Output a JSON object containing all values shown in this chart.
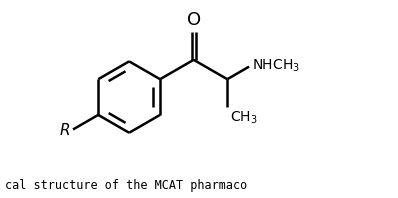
{
  "bg_color": "#ffffff",
  "line_color": "#000000",
  "line_width": 1.8,
  "font_size_labels": 10,
  "font_size_caption": 8.5,
  "caption": "cal structure of the MCAT pharmaco",
  "nhch3_label": "NHCH$_3$",
  "ch3_label": "CH$_3$",
  "r_label": "R",
  "o_label": "O",
  "figsize": [
    3.98,
    1.98
  ],
  "dpi": 100,
  "xlim": [
    0,
    10
  ],
  "ylim": [
    0,
    5
  ]
}
